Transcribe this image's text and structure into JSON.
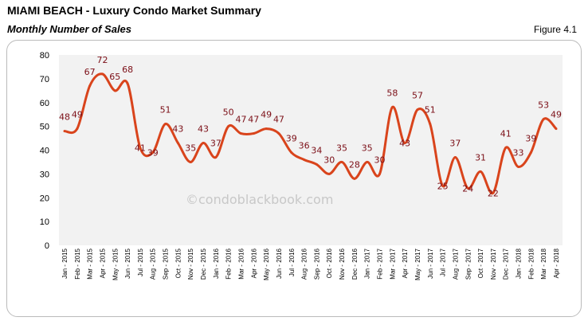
{
  "header": {
    "title": "MIAMI BEACH - Luxury Condo Market Summary",
    "subtitle": "Monthly Number of Sales",
    "figure": "Figure 4.1"
  },
  "watermark": "©condoblackbook.com",
  "chart_data": {
    "type": "line",
    "title": "Monthly Number of Sales",
    "xlabel": "",
    "ylabel": "",
    "ylim": [
      0,
      80
    ],
    "yticks": [
      0,
      10,
      20,
      30,
      40,
      50,
      60,
      70,
      80
    ],
    "grid": false,
    "line_color": "#d9441c",
    "label_color": "#7b0e16",
    "plot_background": "#f2f2f2",
    "categories": [
      "Jan - 2015",
      "Feb - 2015",
      "Mar - 2015",
      "Apr - 2015",
      "May - 2015",
      "Jun - 2015",
      "Jul - 2015",
      "Aug - 2015",
      "Sep - 2015",
      "Oct - 2015",
      "Nov - 2015",
      "Dec - 2015",
      "Jan - 2016",
      "Feb - 2016",
      "Mar - 2016",
      "Apr - 2016",
      "May - 2016",
      "Jun - 2016",
      "Jul - 2016",
      "Aug - 2016",
      "Sep - 2016",
      "Oct - 2016",
      "Nov - 2016",
      "Dec - 2016",
      "Jan - 2017",
      "Feb - 2017",
      "Mar - 2017",
      "Apr - 2017",
      "May - 2017",
      "Jun - 2017",
      "Jul - 2017",
      "Aug - 2017",
      "Sep - 2017",
      "Oct - 2017",
      "Nov - 2017",
      "Dec - 2017",
      "Jan - 2018",
      "Feb - 2018",
      "Mar - 2018",
      "Apr - 2018"
    ],
    "values": [
      48,
      49,
      67,
      72,
      65,
      68,
      41,
      39,
      51,
      43,
      35,
      43,
      37,
      50,
      47,
      47,
      49,
      47,
      39,
      36,
      34,
      30,
      35,
      28,
      35,
      30,
      58,
      43,
      57,
      51,
      25,
      37,
      24,
      31,
      22,
      41,
      33,
      39,
      53,
      49
    ]
  }
}
